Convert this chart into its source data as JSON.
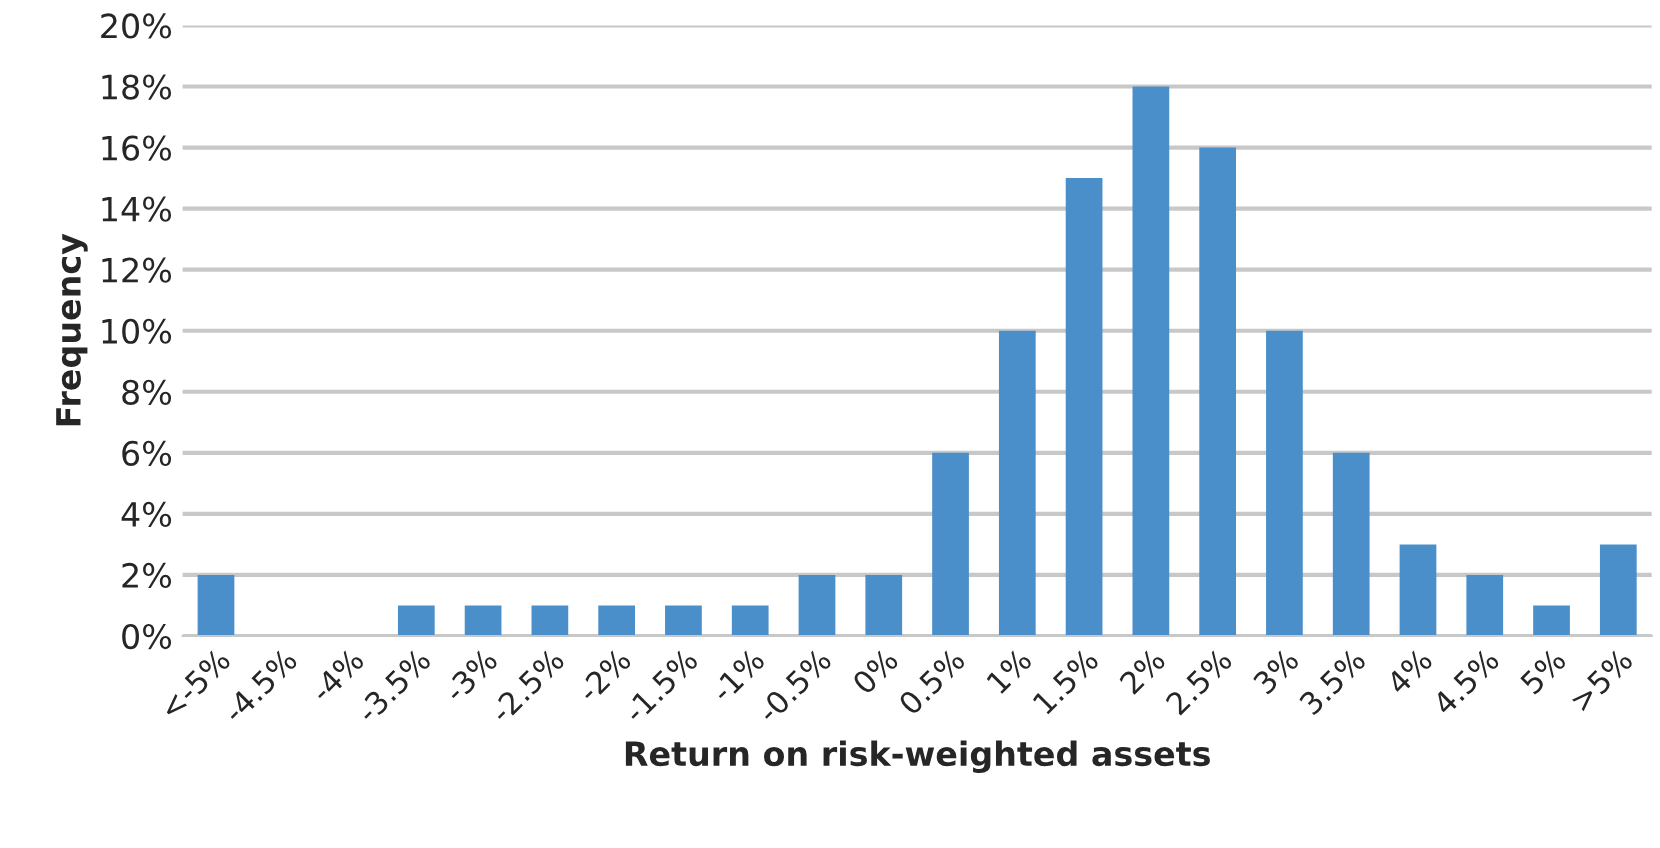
{
  "chart_data": {
    "type": "bar",
    "xlabel": "Return on risk-weighted assets",
    "ylabel": "Frequency",
    "categories": [
      "<-5%",
      "-4.5%",
      "-4%",
      "-3.5%",
      "-3%",
      "-2.5%",
      "-2%",
      "-1.5%",
      "-1%",
      "-0.5%",
      "0%",
      "0.5%",
      "1%",
      "1.5%",
      "2%",
      "2.5%",
      "3%",
      "3.5%",
      "4%",
      "4.5%",
      "5%",
      ">5%"
    ],
    "values": [
      2,
      0,
      0,
      1,
      1,
      1,
      1,
      1,
      1,
      2,
      2,
      6,
      10,
      15,
      18,
      16,
      10,
      6,
      3,
      2,
      1,
      3
    ],
    "color": "#4a8fc9",
    "ylim": [
      0,
      20
    ],
    "yticks": [
      {
        "value": 0,
        "label": "0%"
      },
      {
        "value": 2,
        "label": "2%"
      },
      {
        "value": 4,
        "label": "4%"
      },
      {
        "value": 6,
        "label": "6%"
      },
      {
        "value": 8,
        "label": "8%"
      },
      {
        "value": 10,
        "label": "10%"
      },
      {
        "value": 12,
        "label": "12%"
      },
      {
        "value": 14,
        "label": "14%"
      },
      {
        "value": 16,
        "label": "16%"
      },
      {
        "value": 18,
        "label": "18%"
      },
      {
        "value": 20,
        "label": "20%"
      }
    ],
    "grid": "y",
    "legend": false
  }
}
